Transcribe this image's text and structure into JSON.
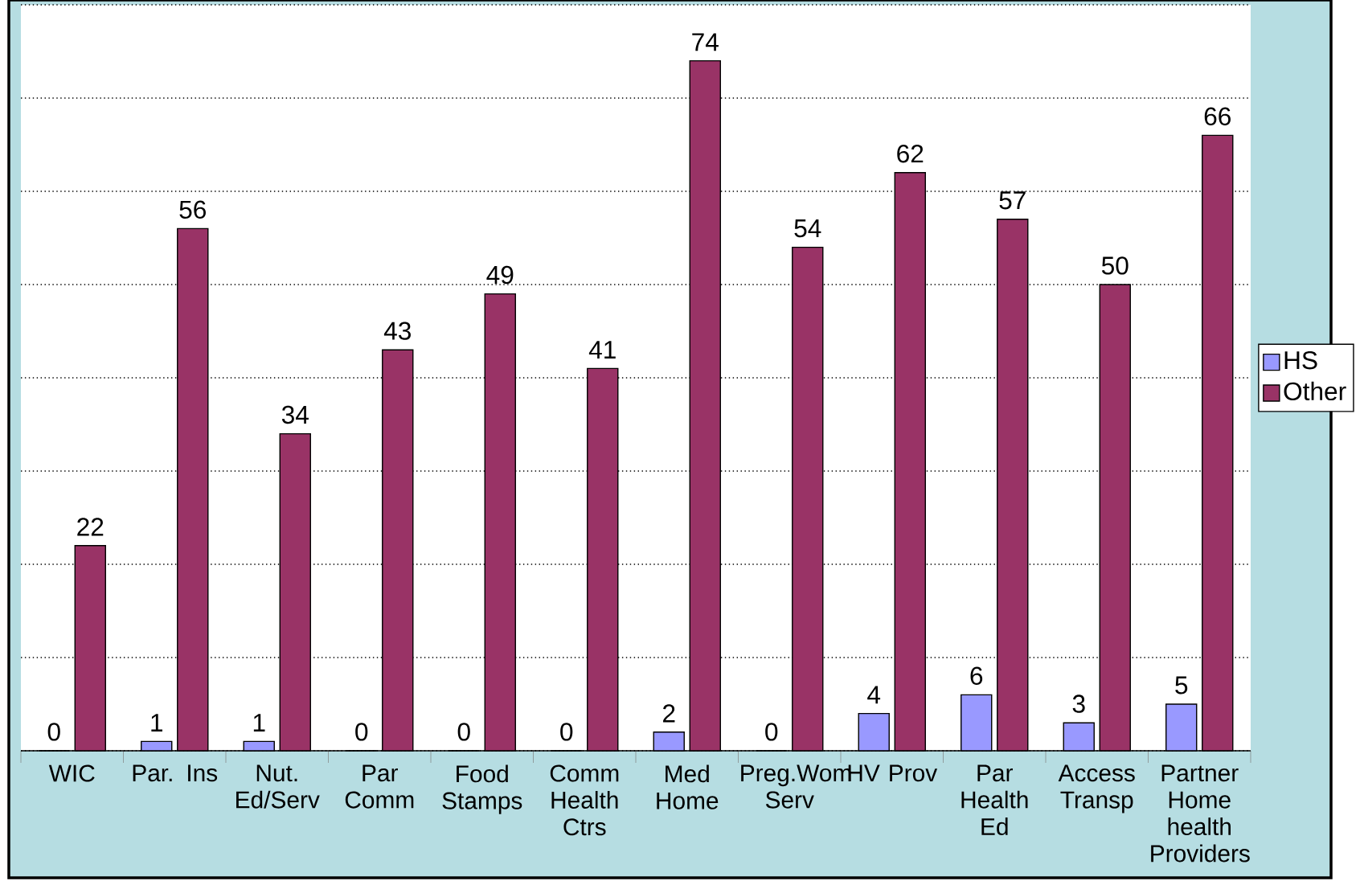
{
  "chart_data": {
    "type": "bar",
    "categories": [
      "WIC",
      "Par. Ins",
      "Nut. Ed/Serv",
      "Par Comm",
      "Food Stamps",
      "Comm Health Ctrs",
      "Med Home",
      "Preg.Wom Serv",
      "HV Prov",
      "Par Health Ed",
      "Access Transp",
      "Partner Home health Providers"
    ],
    "series": [
      {
        "name": "HS",
        "color": "#9999ff",
        "values": [
          0,
          1,
          1,
          0,
          0,
          0,
          2,
          0,
          4,
          6,
          3,
          5
        ]
      },
      {
        "name": "Other",
        "color": "#993366",
        "values": [
          22,
          56,
          34,
          43,
          49,
          41,
          74,
          54,
          62,
          57,
          50,
          66
        ]
      }
    ],
    "ylim": [
      0,
      80
    ],
    "yticks": [
      {
        "value": 0,
        "label": null
      },
      {
        "value": 10,
        "label": null
      },
      {
        "value": 20,
        "label": null
      },
      {
        "value": 30,
        "label": null
      },
      {
        "value": 40,
        "label": null
      },
      {
        "value": 50,
        "label": null
      },
      {
        "value": 60,
        "label": null
      },
      {
        "value": 70,
        "label": null
      },
      {
        "value": 80,
        "label": null
      }
    ],
    "grid": "y",
    "legend": "right",
    "data_labels": true
  }
}
